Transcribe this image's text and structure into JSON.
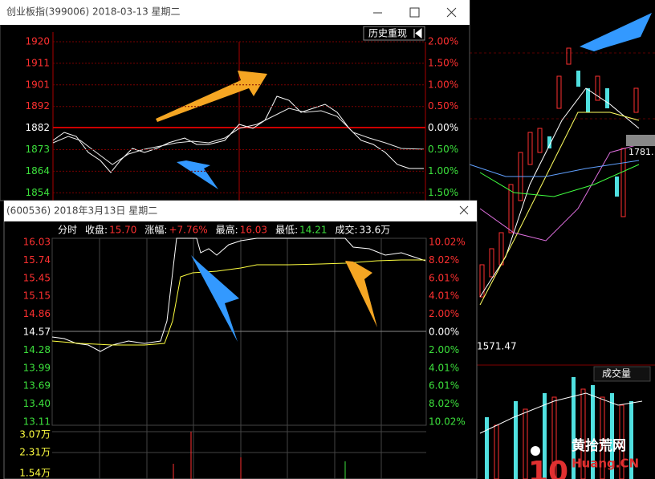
{
  "index_window": {
    "title": "创业板指(399006) 2018-03-13 星期二",
    "history_button": "历史重现",
    "price_labels": [
      "1920",
      "1911",
      "1901",
      "1892",
      "1882",
      "1873",
      "1864",
      "1854"
    ],
    "pct_labels": [
      "2.00%",
      "1.50%",
      "1.00%",
      "0.50%",
      "0.00%",
      "0.50%",
      "1.00%",
      "1.50%"
    ]
  },
  "stock_window": {
    "title": "(600536) 2018年3月13日 星期二",
    "info": {
      "mode": "分时",
      "close_label": "收盘:",
      "close": "15.70",
      "change_label": "涨幅:",
      "change": "+7.76%",
      "high_label": "最高:",
      "high": "16.03",
      "low_label": "最低:",
      "low": "14.21",
      "volume_label": "成交:",
      "volume": "33.6万"
    },
    "price_labels": [
      "16.03",
      "15.74",
      "15.45",
      "15.15",
      "14.86",
      "14.57",
      "14.28",
      "13.99",
      "13.69",
      "13.40",
      "13.11"
    ],
    "pct_labels": [
      "10.02%",
      "8.02%",
      "6.01%",
      "4.01%",
      "2.00%",
      "0.00%",
      "2.00%",
      "4.01%",
      "6.01%",
      "8.02%",
      "10.02%"
    ],
    "volume_labels": [
      "3.07万",
      "2.31万",
      "1.54万"
    ]
  },
  "background": {
    "low_price": "1571.47",
    "price_tag": "1781.",
    "volume_tab": "成交量",
    "watermark": "黄拾荒网",
    "watermark_url": "Huang.CN"
  }
}
